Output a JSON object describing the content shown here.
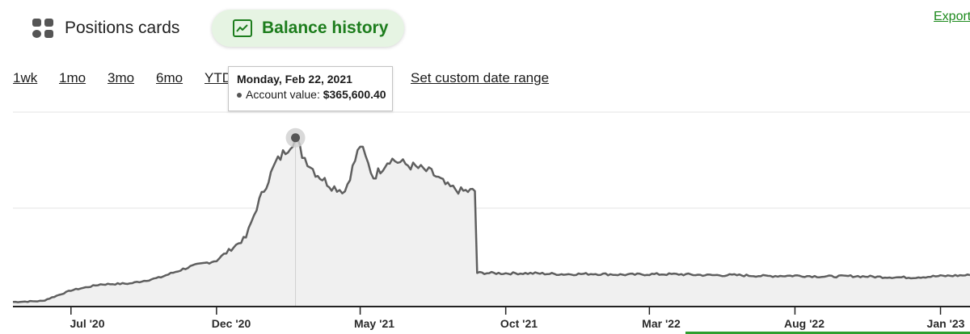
{
  "view_tabs": {
    "positions": {
      "label": "Positions cards",
      "icon": "grid-icon"
    },
    "balance": {
      "label": "Balance history",
      "icon": "trend-chart-icon",
      "active": true
    }
  },
  "export_label": "Export",
  "ranges": [
    "1wk",
    "1mo",
    "3mo",
    "6mo",
    "YTD"
  ],
  "custom_range_label": "Set custom date range",
  "tooltip": {
    "date": "Monday, Feb 22, 2021",
    "series_label": "Account value:",
    "value": "$365,600.40"
  },
  "colors": {
    "accent_green": "#1d7d1d",
    "line": "#5f5f5f",
    "area": "#f0f0f0"
  },
  "chart_data": {
    "type": "area",
    "x_labels": [
      "Jul '20",
      "Dec '20",
      "May '21",
      "Oct '21",
      "Mar '22",
      "Aug '22",
      "Jan '23"
    ],
    "x": [
      "2020-05-01",
      "2020-06-01",
      "2020-07-01",
      "2020-08-01",
      "2020-09-01",
      "2020-10-01",
      "2020-11-01",
      "2020-12-01",
      "2021-01-01",
      "2021-01-15",
      "2021-02-01",
      "2021-02-22",
      "2021-03-01",
      "2021-03-15",
      "2021-04-01",
      "2021-04-15",
      "2021-05-01",
      "2021-05-15",
      "2021-06-01",
      "2021-06-15",
      "2021-07-01",
      "2021-07-15",
      "2021-08-01",
      "2021-08-15",
      "2021-09-01",
      "2021-10-01",
      "2021-11-01",
      "2021-12-01",
      "2022-01-01",
      "2022-02-01",
      "2022-03-01",
      "2022-04-01",
      "2022-05-01",
      "2022-06-01",
      "2022-07-01",
      "2022-08-01",
      "2022-09-01",
      "2022-10-01",
      "2022-11-01",
      "2022-12-01",
      "2023-01-01",
      "2023-02-01"
    ],
    "y": [
      10000,
      12000,
      35000,
      48000,
      50000,
      62000,
      85000,
      100000,
      150000,
      230000,
      310000,
      365600,
      330000,
      290000,
      260000,
      250000,
      350000,
      280000,
      320000,
      310000,
      300000,
      290000,
      260000,
      250000,
      73000,
      72000,
      72000,
      70000,
      71000,
      69000,
      70000,
      70000,
      68000,
      68000,
      66000,
      67000,
      65000,
      66000,
      64000,
      63000,
      66000,
      68000
    ],
    "highlight": {
      "x": "2021-02-22",
      "y": 365600.4
    },
    "grid": true,
    "ylim": [
      0,
      400000
    ]
  }
}
